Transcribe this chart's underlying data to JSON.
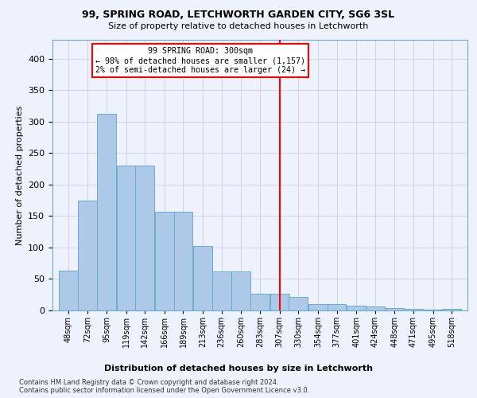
{
  "title1": "99, SPRING ROAD, LETCHWORTH GARDEN CITY, SG6 3SL",
  "title2": "Size of property relative to detached houses in Letchworth",
  "xlabel": "Distribution of detached houses by size in Letchworth",
  "ylabel": "Number of detached properties",
  "footnote": "Contains HM Land Registry data © Crown copyright and database right 2024.\nContains public sector information licensed under the Open Government Licence v3.0.",
  "bin_labels": [
    "48sqm",
    "72sqm",
    "95sqm",
    "119sqm",
    "142sqm",
    "166sqm",
    "189sqm",
    "213sqm",
    "236sqm",
    "260sqm",
    "283sqm",
    "307sqm",
    "330sqm",
    "354sqm",
    "377sqm",
    "401sqm",
    "424sqm",
    "448sqm",
    "471sqm",
    "495sqm",
    "518sqm"
  ],
  "bar_values": [
    63,
    174,
    313,
    230,
    230,
    157,
    157,
    102,
    62,
    62,
    27,
    27,
    21,
    10,
    10,
    8,
    6,
    4,
    3,
    1,
    3
  ],
  "bar_color": "#adc9e8",
  "bar_edge_color": "#6aaad4",
  "property_size": 307,
  "pct_smaller": 98,
  "n_smaller": 1157,
  "pct_larger_semi": 2,
  "n_larger_semi": 24,
  "vline_color": "red",
  "bg_color": "#eef2fc",
  "ylim": [
    0,
    430
  ],
  "yticks": [
    0,
    50,
    100,
    150,
    200,
    250,
    300,
    350,
    400
  ],
  "grid_color": "#c8d0e0"
}
